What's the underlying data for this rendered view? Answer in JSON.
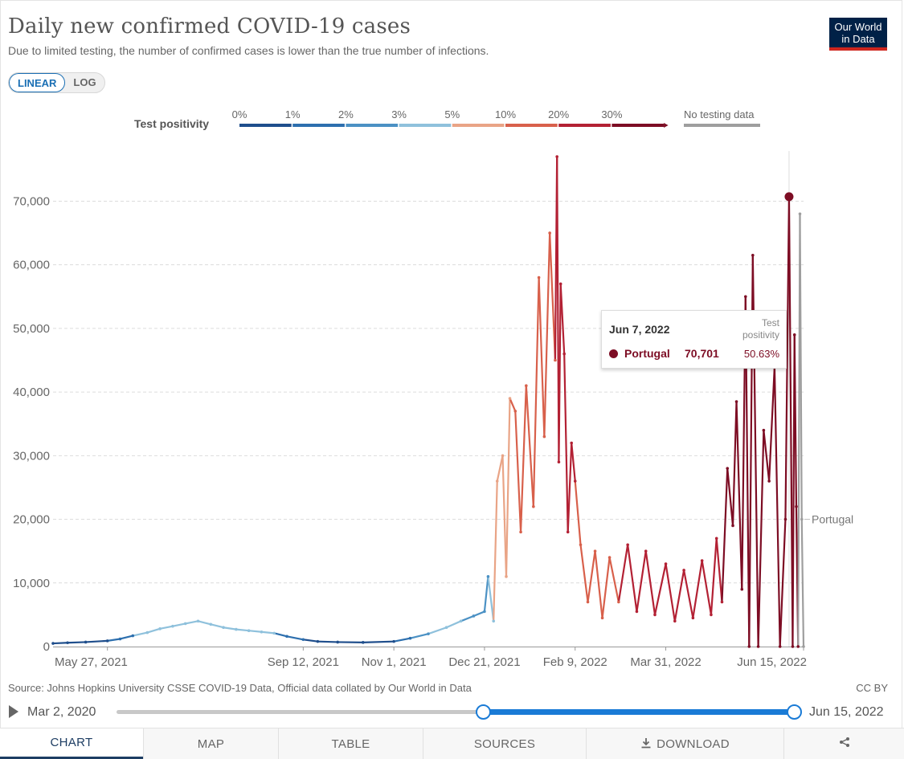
{
  "header": {
    "title": "Daily new confirmed COVID-19 cases",
    "subtitle": "Due to limited testing, the number of confirmed cases is lower than the true number of infections.",
    "logo_line1": "Our World",
    "logo_line2": "in Data"
  },
  "scale_toggle": {
    "linear": "LINEAR",
    "log": "LOG",
    "selected": "LINEAR"
  },
  "legend": {
    "title": "Test positivity",
    "bins": [
      {
        "label": "0%",
        "color": "#1f4e8c"
      },
      {
        "label": "1%",
        "color": "#2d6fae"
      },
      {
        "label": "2%",
        "color": "#4b91c4"
      },
      {
        "label": "3%",
        "color": "#8fc1dc"
      },
      {
        "label": "5%",
        "color": "#e9a486"
      },
      {
        "label": "10%",
        "color": "#d8604b"
      },
      {
        "label": "20%",
        "color": "#b32134"
      },
      {
        "label": "30%",
        "color": "#7d0d24"
      }
    ],
    "no_data_label": "No testing data",
    "no_data_color": "#9e9e9e"
  },
  "tooltip": {
    "date": "Jun 7, 2022",
    "header_right": "Test positivity",
    "country": "Portugal",
    "value": "70,701",
    "positivity": "50.63%"
  },
  "chart_data": {
    "type": "line",
    "title": "Daily new confirmed COVID-19 cases",
    "series_name": "Portugal",
    "end_label": "Portugal",
    "xlabel": "",
    "ylabel": "",
    "ylim": [
      0,
      77000
    ],
    "yticks": [
      0,
      10000,
      20000,
      30000,
      40000,
      50000,
      60000,
      70000
    ],
    "ytick_labels": [
      "0",
      "10,000",
      "20,000",
      "30,000",
      "40,000",
      "50,000",
      "60,000",
      "70,000"
    ],
    "xticks": [
      "2021-05-27",
      "2021-09-12",
      "2021-11-01",
      "2021-12-21",
      "2022-02-09",
      "2022-03-31",
      "2022-06-15"
    ],
    "xtick_labels": [
      "May 27, 2021",
      "Sep 12, 2021",
      "Nov 1, 2021",
      "Dec 21, 2021",
      "Feb 9, 2022",
      "Mar 31, 2022",
      "Jun 15, 2022"
    ],
    "x_range": [
      "2021-04-27",
      "2022-06-15"
    ],
    "highlight": {
      "date": "2022-06-07",
      "value": 70701,
      "positivity": 50.63
    },
    "points": [
      [
        "2021-04-27",
        500,
        0.5
      ],
      [
        "2021-05-05",
        600,
        0.6
      ],
      [
        "2021-05-15",
        700,
        0.7
      ],
      [
        "2021-05-27",
        900,
        0.8
      ],
      [
        "2021-06-03",
        1200,
        1.2
      ],
      [
        "2021-06-10",
        1700,
        1.4
      ],
      [
        "2021-06-18",
        2200,
        3.2
      ],
      [
        "2021-06-25",
        2800,
        3.4
      ],
      [
        "2021-07-02",
        3200,
        3.6
      ],
      [
        "2021-07-09",
        3600,
        3.8
      ],
      [
        "2021-07-16",
        4000,
        3.9
      ],
      [
        "2021-07-23",
        3500,
        3.6
      ],
      [
        "2021-07-30",
        3000,
        3.3
      ],
      [
        "2021-08-06",
        2700,
        3.2
      ],
      [
        "2021-08-13",
        2500,
        3.1
      ],
      [
        "2021-08-20",
        2300,
        3.0
      ],
      [
        "2021-08-27",
        2100,
        3.0
      ],
      [
        "2021-09-03",
        1600,
        1.8
      ],
      [
        "2021-09-12",
        1100,
        1.2
      ],
      [
        "2021-09-20",
        800,
        0.8
      ],
      [
        "2021-10-01",
        700,
        0.6
      ],
      [
        "2021-10-15",
        650,
        0.6
      ],
      [
        "2021-11-01",
        800,
        0.9
      ],
      [
        "2021-11-10",
        1300,
        1.8
      ],
      [
        "2021-11-20",
        2000,
        2.4
      ],
      [
        "2021-11-30",
        3000,
        3.1
      ],
      [
        "2021-12-08",
        4000,
        3.2
      ],
      [
        "2021-12-15",
        4800,
        2.8
      ],
      [
        "2021-12-21",
        5500,
        2.5
      ],
      [
        "2021-12-23",
        11000,
        2.6
      ],
      [
        "2021-12-26",
        4000,
        3.5
      ],
      [
        "2021-12-28",
        26000,
        6.0
      ],
      [
        "2021-12-31",
        30000,
        6.5
      ],
      [
        "2022-01-02",
        11000,
        6.5
      ],
      [
        "2022-01-04",
        39000,
        9.0
      ],
      [
        "2022-01-07",
        37000,
        10.0
      ],
      [
        "2022-01-10",
        18000,
        11.0
      ],
      [
        "2022-01-13",
        41000,
        12.0
      ],
      [
        "2022-01-17",
        22000,
        13.0
      ],
      [
        "2022-01-20",
        58000,
        14.0
      ],
      [
        "2022-01-23",
        33000,
        15.0
      ],
      [
        "2022-01-26",
        65000,
        17.0
      ],
      [
        "2022-01-29",
        45000,
        18.0
      ],
      [
        "2022-01-30",
        77000,
        20.0
      ],
      [
        "2022-01-31",
        29000,
        20.0
      ],
      [
        "2022-02-01",
        57000,
        21.0
      ],
      [
        "2022-02-03",
        46000,
        21.0
      ],
      [
        "2022-02-05",
        18000,
        21.0
      ],
      [
        "2022-02-07",
        32000,
        21.0
      ],
      [
        "2022-02-09",
        26000,
        20.0
      ],
      [
        "2022-02-12",
        16000,
        19.0
      ],
      [
        "2022-02-16",
        7000,
        17.0
      ],
      [
        "2022-02-20",
        15000,
        16.0
      ],
      [
        "2022-02-24",
        4500,
        15.0
      ],
      [
        "2022-02-28",
        14000,
        17.0
      ],
      [
        "2022-03-05",
        7000,
        18.0
      ],
      [
        "2022-03-10",
        16000,
        20.0
      ],
      [
        "2022-03-15",
        5500,
        21.0
      ],
      [
        "2022-03-20",
        15000,
        22.0
      ],
      [
        "2022-03-25",
        5000,
        22.0
      ],
      [
        "2022-03-31",
        13000,
        23.0
      ],
      [
        "2022-04-05",
        4000,
        23.0
      ],
      [
        "2022-04-10",
        12000,
        24.0
      ],
      [
        "2022-04-15",
        4500,
        25.0
      ],
      [
        "2022-04-20",
        13500,
        26.0
      ],
      [
        "2022-04-25",
        5000,
        27.0
      ],
      [
        "2022-04-28",
        17000,
        28.0
      ],
      [
        "2022-05-01",
        7000,
        29.0
      ],
      [
        "2022-05-04",
        28000,
        30.0
      ],
      [
        "2022-05-07",
        19000,
        31.0
      ],
      [
        "2022-05-09",
        38500,
        32.0
      ],
      [
        "2022-05-12",
        9000,
        33.0
      ],
      [
        "2022-05-14",
        55000,
        35.0
      ],
      [
        "2022-05-16",
        0,
        35.0
      ],
      [
        "2022-05-18",
        61500,
        38.0
      ],
      [
        "2022-05-21",
        0,
        38.0
      ],
      [
        "2022-05-24",
        34000,
        42.0
      ],
      [
        "2022-05-27",
        26000,
        44.0
      ],
      [
        "2022-05-30",
        44000,
        46.0
      ],
      [
        "2022-06-02",
        0,
        48.0
      ],
      [
        "2022-06-05",
        20000,
        49.0
      ],
      [
        "2022-06-07",
        70701,
        50.63
      ],
      [
        "2022-06-09",
        0,
        51.0
      ],
      [
        "2022-06-10",
        49000,
        51.0
      ],
      [
        "2022-06-11",
        22000,
        51.0
      ],
      [
        "2022-06-12",
        0,
        51.0
      ],
      [
        "2022-06-13",
        68000,
        null
      ],
      [
        "2022-06-14",
        20000,
        null
      ],
      [
        "2022-06-15",
        0,
        null
      ]
    ]
  },
  "footer": {
    "source": "Source: Johns Hopkins University CSSE COVID-19 Data, Official data collated by Our World in Data",
    "license": "CC BY"
  },
  "timeline": {
    "start": "Mar 2, 2020",
    "end": "Jun 15, 2022",
    "selection_start_fraction": 0.541,
    "selection_end_fraction": 1.0
  },
  "tabs": [
    {
      "label": "CHART",
      "active": true
    },
    {
      "label": "MAP",
      "active": false
    },
    {
      "label": "TABLE",
      "active": false
    },
    {
      "label": "SOURCES",
      "active": false
    },
    {
      "label": "DOWNLOAD",
      "active": false,
      "icon": "download-icon"
    },
    {
      "label": "",
      "active": false,
      "icon": "share-icon"
    }
  ]
}
